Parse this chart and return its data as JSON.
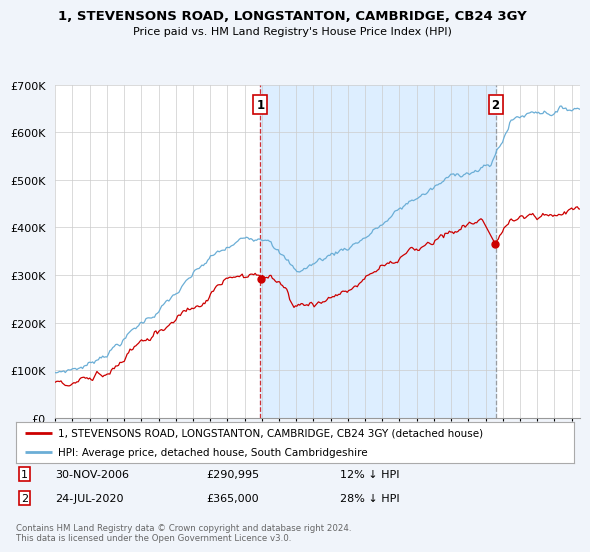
{
  "title": "1, STEVENSONS ROAD, LONGSTANTON, CAMBRIDGE, CB24 3GY",
  "subtitle": "Price paid vs. HM Land Registry's House Price Index (HPI)",
  "legend_label_red": "1, STEVENSONS ROAD, LONGSTANTON, CAMBRIDGE, CB24 3GY (detached house)",
  "legend_label_blue": "HPI: Average price, detached house, South Cambridgeshire",
  "annotation1": {
    "label": "1",
    "date_str": "30-NOV-2006",
    "price_str": "£290,995",
    "pct_str": "12% ↓ HPI",
    "year": 2006.92
  },
  "annotation2": {
    "label": "2",
    "date_str": "24-JUL-2020",
    "price_str": "£365,000",
    "pct_str": "28% ↓ HPI",
    "year": 2020.58
  },
  "footer": "Contains HM Land Registry data © Crown copyright and database right 2024.\nThis data is licensed under the Open Government Licence v3.0.",
  "hpi_color": "#6baed6",
  "price_color": "#cc0000",
  "shade_color": "#ddeeff",
  "background_color": "#f0f4fa",
  "plot_bg_color": "#ffffff",
  "ylim": [
    0,
    700000
  ],
  "xlim_start": 1995.0,
  "xlim_end": 2025.5
}
